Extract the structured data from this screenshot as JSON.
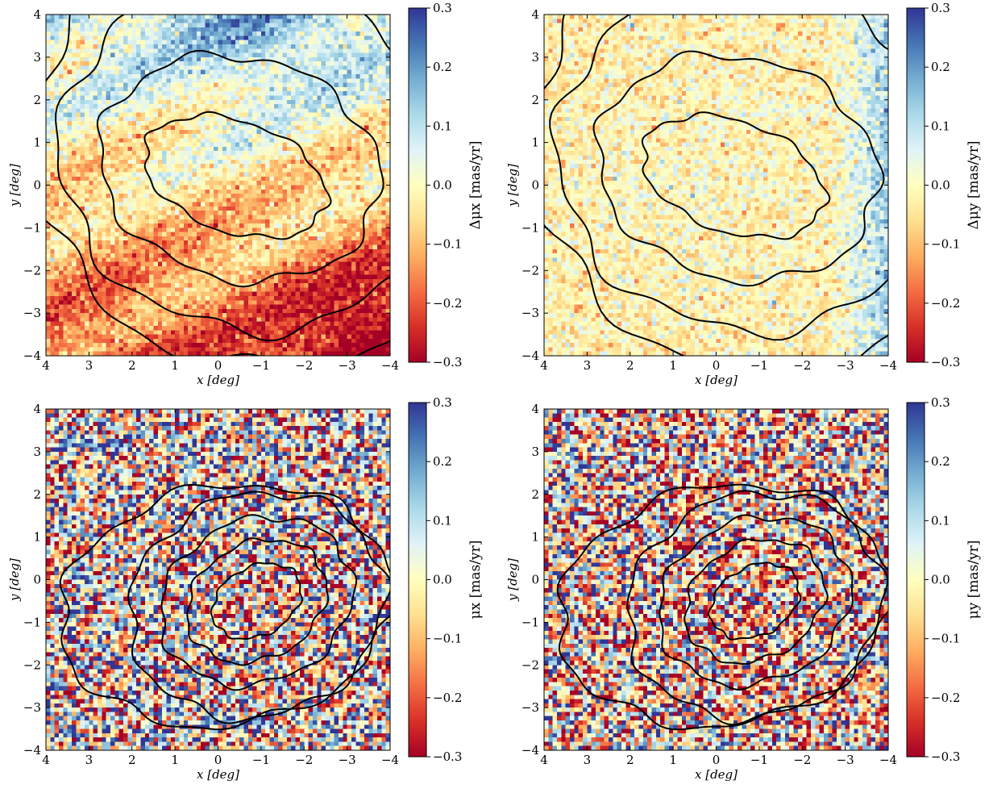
{
  "colormap": {
    "name": "RdYlBu",
    "stops": [
      "#a50026",
      "#d73027",
      "#f46d43",
      "#fdae61",
      "#fee090",
      "#ffffbf",
      "#e0f3f8",
      "#abd9e9",
      "#74add1",
      "#4575b4",
      "#313695"
    ]
  },
  "chart_data": [
    {
      "type": "heatmap",
      "panel": "top-left",
      "xlabel": "x [deg]",
      "ylabel": "y [deg]",
      "xlim": [
        4,
        -4
      ],
      "ylim": [
        -4,
        4
      ],
      "xticks": [
        "4",
        "3",
        "2",
        "1",
        "0",
        "−1",
        "−2",
        "−3",
        "−4"
      ],
      "yticks": [
        "−4",
        "−3",
        "−2",
        "−1",
        "0",
        "1",
        "2",
        "3",
        "4"
      ],
      "colorbar": {
        "label": "Δμx [mas/yr]",
        "range": [
          -0.3,
          0.3
        ],
        "ticks": [
          "0.3",
          "0.2",
          "0.1",
          "0.0",
          "−0.1",
          "−0.2",
          "−0.3"
        ]
      },
      "field": {
        "kind": "residual_x",
        "noise": 0.05
      },
      "contours": [
        {
          "cx": -0.4,
          "cy": 0.2,
          "rx": 2.2,
          "ry": 1.3,
          "rot": 20
        },
        {
          "cx": -0.5,
          "cy": 0.4,
          "rx": 3.3,
          "ry": 2.6,
          "rot": 15
        },
        {
          "cx": -0.8,
          "cy": 0.7,
          "rx": 4.5,
          "ry": 4.1,
          "rot": 10
        },
        {
          "cx": -1.2,
          "cy": 1.0,
          "rx": 5.5,
          "ry": 5.3,
          "rot": 5
        }
      ]
    },
    {
      "type": "heatmap",
      "panel": "top-right",
      "xlabel": "x [deg]",
      "ylabel": "y [deg]",
      "xlim": [
        4,
        -4
      ],
      "ylim": [
        -4,
        4
      ],
      "xticks": [
        "4",
        "3",
        "2",
        "1",
        "0",
        "−1",
        "−2",
        "−3",
        "−4"
      ],
      "yticks": [
        "−4",
        "−3",
        "−2",
        "−1",
        "0",
        "1",
        "2",
        "3",
        "4"
      ],
      "colorbar": {
        "label": "Δμy [mas/yr]",
        "range": [
          -0.3,
          0.3
        ],
        "ticks": [
          "0.3",
          "0.2",
          "0.1",
          "0.0",
          "−0.1",
          "−0.2",
          "−0.3"
        ]
      },
      "field": {
        "kind": "residual_y",
        "noise": 0.05
      },
      "contours": [
        {
          "cx": -0.4,
          "cy": 0.2,
          "rx": 2.2,
          "ry": 1.3,
          "rot": 20
        },
        {
          "cx": -0.5,
          "cy": 0.4,
          "rx": 3.3,
          "ry": 2.6,
          "rot": 15
        },
        {
          "cx": -0.8,
          "cy": 0.7,
          "rx": 4.5,
          "ry": 4.1,
          "rot": 10
        },
        {
          "cx": -1.2,
          "cy": 1.0,
          "rx": 5.5,
          "ry": 5.3,
          "rot": 5
        }
      ]
    },
    {
      "type": "heatmap",
      "panel": "bottom-left",
      "xlabel": "x [deg]",
      "ylabel": "y [deg]",
      "xlim": [
        4,
        -4
      ],
      "ylim": [
        -4,
        4
      ],
      "xticks": [
        "4",
        "3",
        "2",
        "1",
        "0",
        "−1",
        "−2",
        "−3",
        "−4"
      ],
      "yticks": [
        "−4",
        "−3",
        "−2",
        "−1",
        "0",
        "1",
        "2",
        "3",
        "4"
      ],
      "colorbar": {
        "label": "μx [mas/yr]",
        "range": [
          -0.3,
          0.3
        ],
        "ticks": [
          "0.3",
          "0.2",
          "0.1",
          "0.0",
          "−0.1",
          "−0.2",
          "−0.3"
        ]
      },
      "field": {
        "kind": "mu_x",
        "noise": 0.22
      },
      "contours": [
        {
          "cx": -0.9,
          "cy": -0.5,
          "rx": 1.1,
          "ry": 0.8,
          "rot": -30
        },
        {
          "cx": -0.9,
          "cy": -0.5,
          "rx": 1.7,
          "ry": 1.35,
          "rot": -30
        },
        {
          "cx": -0.9,
          "cy": -0.5,
          "rx": 2.3,
          "ry": 1.9,
          "rot": -25
        },
        {
          "cx": -0.9,
          "cy": -0.6,
          "rx": 3.0,
          "ry": 2.6,
          "rot": -20
        },
        {
          "cx": -0.2,
          "cy": -0.6,
          "rx": 3.9,
          "ry": 2.8,
          "rot": -10
        }
      ]
    },
    {
      "type": "heatmap",
      "panel": "bottom-right",
      "xlabel": "x [deg]",
      "ylabel": "y [deg]",
      "xlim": [
        4,
        -4
      ],
      "ylim": [
        -4,
        4
      ],
      "xticks": [
        "4",
        "3",
        "2",
        "1",
        "0",
        "−1",
        "−2",
        "−3",
        "−4"
      ],
      "yticks": [
        "−4",
        "−3",
        "−2",
        "−1",
        "0",
        "1",
        "2",
        "3",
        "4"
      ],
      "colorbar": {
        "label": "μy [mas/yr]",
        "range": [
          -0.3,
          0.3
        ],
        "ticks": [
          "0.3",
          "0.2",
          "0.1",
          "0.0",
          "−0.1",
          "−0.2",
          "−0.3"
        ]
      },
      "field": {
        "kind": "mu_y",
        "noise": 0.22
      },
      "contours": [
        {
          "cx": -0.9,
          "cy": -0.5,
          "rx": 1.1,
          "ry": 0.8,
          "rot": -30
        },
        {
          "cx": -0.9,
          "cy": -0.5,
          "rx": 1.7,
          "ry": 1.35,
          "rot": -30
        },
        {
          "cx": -0.9,
          "cy": -0.5,
          "rx": 2.3,
          "ry": 1.9,
          "rot": -25
        },
        {
          "cx": -0.9,
          "cy": -0.6,
          "rx": 3.0,
          "ry": 2.6,
          "rot": -20
        },
        {
          "cx": -0.2,
          "cy": -0.6,
          "rx": 3.9,
          "ry": 2.8,
          "rot": -10
        }
      ]
    }
  ]
}
